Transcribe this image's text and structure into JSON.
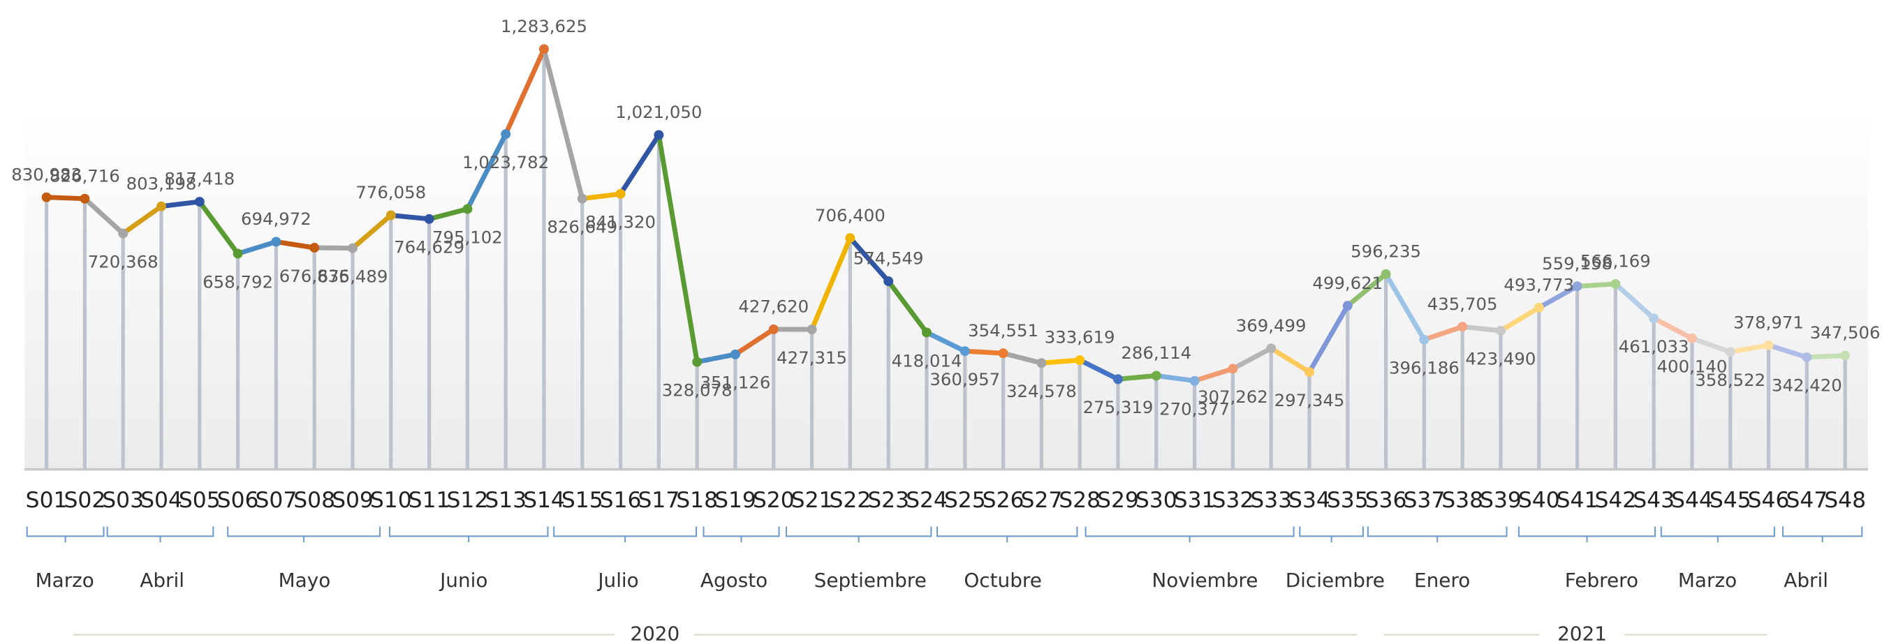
{
  "chart_data": {
    "type": "line",
    "categories": [
      "S01",
      "S02",
      "S03",
      "S04",
      "S05",
      "S06",
      "S07",
      "S08",
      "S09",
      "S10",
      "S11",
      "S12",
      "S13",
      "S14",
      "S15",
      "S16",
      "S17",
      "S18",
      "S19",
      "S20",
      "S21",
      "S22",
      "S23",
      "S24",
      "S25",
      "S26",
      "S27",
      "S28",
      "S29",
      "S30",
      "S31",
      "S32",
      "S33",
      "S34",
      "S35",
      "S36",
      "S37",
      "S38",
      "S39",
      "S40",
      "S41",
      "S42",
      "S43",
      "S44",
      "S45",
      "S46",
      "S47",
      "S48"
    ],
    "values": [
      830983,
      826716,
      720368,
      803198,
      817418,
      658792,
      694972,
      676836,
      675489,
      776058,
      764629,
      795102,
      1023782,
      1283625,
      826649,
      841320,
      1021050,
      328078,
      351126,
      427620,
      427315,
      706400,
      574549,
      418014,
      360957,
      354551,
      324578,
      333619,
      275319,
      286114,
      270377,
      307262,
      369499,
      297345,
      499621,
      596235,
      396186,
      435705,
      423490,
      493773,
      559158,
      566169,
      461033,
      400140,
      358522,
      378971,
      342420,
      347506
    ],
    "value_labels": [
      "830,983",
      "826,716",
      "720,368",
      "803,198",
      "817,418",
      "658,792",
      "694,972",
      "676,836",
      "675,489",
      "776,058",
      "764,629",
      "795,102",
      "1,023,782",
      "1,283,625",
      "826,649",
      "841,320",
      "1,021,050",
      "328,078",
      "351,126",
      "427,620",
      "427,315",
      "706,400",
      "574,549",
      "418,014",
      "360,957",
      "354,551",
      "324,578",
      "333,619",
      "275,319",
      "286,114",
      "270,377",
      "307,262",
      "369,499",
      "297,345",
      "499,621",
      "596,235",
      "396,186",
      "435,705",
      "423,490",
      "493,773",
      "559,158",
      "566,169",
      "461,033",
      "400,140",
      "358,522",
      "378,971",
      "342,420",
      "347,506"
    ],
    "colors": [
      "#c55a11",
      "#a5a5a5",
      "#d4a017",
      "#2f55a4",
      "#5a9a32",
      "#4a8cc4",
      "#c55a11",
      "#a5a5a5",
      "#d4a017",
      "#2f55a4",
      "#5a9a32",
      "#4a8cc4",
      "#e07030",
      "#a5a5a5",
      "#f0b400",
      "#2f55a4",
      "#5a9a32",
      "#4a8cc4",
      "#e07030",
      "#a5a5a5",
      "#f0b400",
      "#2f55a4",
      "#5a9a32",
      "#5b9bd5",
      "#ed7d31",
      "#a5a5a5",
      "#ffc000",
      "#4472c4",
      "#70ad47",
      "#7fb0e0",
      "#f29a70",
      "#b5b5b5",
      "#ffc95c",
      "#7f96d8",
      "#8fbf6f",
      "#9dc3e6",
      "#f4a582",
      "#c8c8c8",
      "#ffd77a",
      "#8fa3dc",
      "#a9d18e",
      "#b4cde9",
      "#f8c0a6",
      "#d6d6d6",
      "#ffe0a0",
      "#b0bde6",
      "#c5e0b4"
    ],
    "ylim": [
      0,
      1400000
    ],
    "months": [
      "Marzo",
      "Abril",
      "Mayo",
      "Junio",
      "Julio",
      "Agosto",
      "Septiembre",
      "Octubre",
      "Noviembre",
      "Diciembre",
      "Enero",
      "Febrero",
      "Marzo",
      "Abril"
    ],
    "years": [
      "2020",
      "2021"
    ]
  }
}
